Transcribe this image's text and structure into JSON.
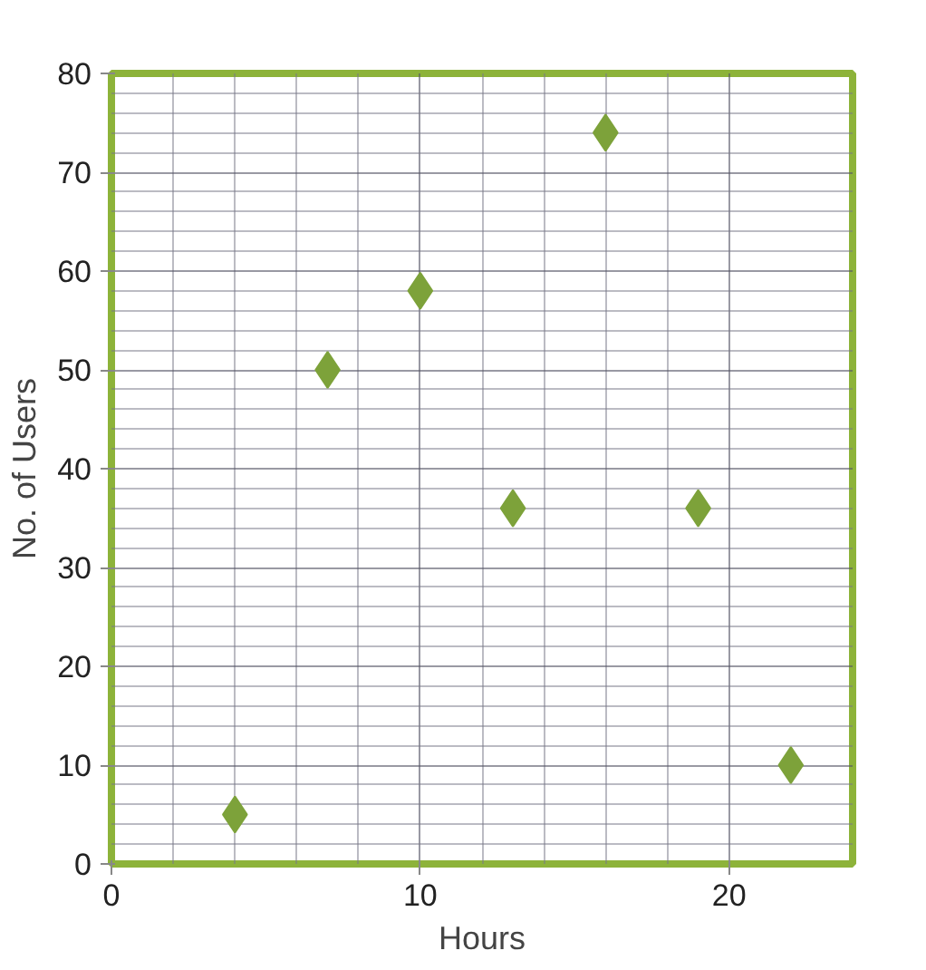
{
  "chart_data": {
    "type": "scatter",
    "xlabel": "Hours",
    "ylabel": "No. of Users",
    "x": [
      4,
      7,
      10,
      13,
      16,
      19,
      22
    ],
    "series": [
      {
        "color": "#7da23a",
        "values": [
          5,
          50,
          58,
          36,
          74,
          36,
          10
        ]
      }
    ],
    "marker": "diamond",
    "grid": true,
    "xlim": [
      0,
      24
    ],
    "xticks": [
      0,
      10,
      20
    ],
    "ylim": [
      0,
      80
    ],
    "yticks": [
      0,
      10,
      20,
      30,
      40,
      50,
      60,
      70,
      80
    ]
  }
}
